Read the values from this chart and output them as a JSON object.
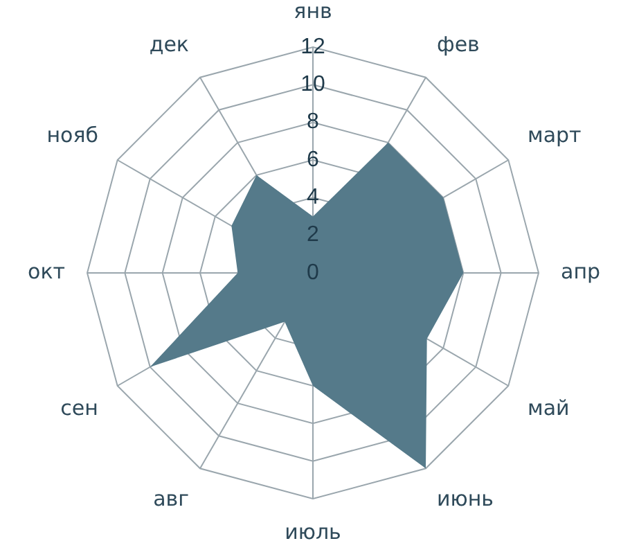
{
  "chart_data": {
    "type": "radar",
    "categories": [
      "янв",
      "фев",
      "март",
      "апр",
      "май",
      "июнь",
      "июль",
      "авг",
      "сен",
      "окт",
      "нояб",
      "дек"
    ],
    "series": [
      {
        "color": "#557a8a",
        "values": [
          3,
          8,
          8,
          8,
          7,
          12,
          6,
          3,
          10,
          4,
          5,
          6
        ]
      }
    ],
    "ylim": [
      0,
      12
    ],
    "yticks": [
      0,
      2,
      4,
      6,
      8,
      10,
      12
    ],
    "grid": true,
    "legend": false,
    "marker": "none"
  }
}
